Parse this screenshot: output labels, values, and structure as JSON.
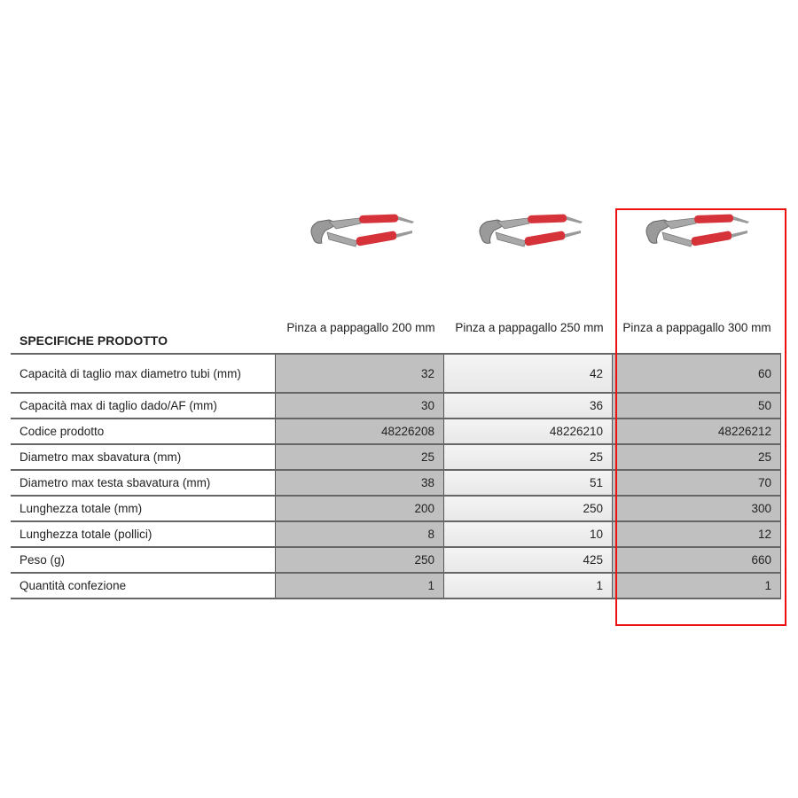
{
  "spec_title": "SPECIFICHE PRODOTTO",
  "highlight_color": "#ee1111",
  "products": [
    {
      "title": "Pinza a pappagallo 200 mm",
      "image": "pliers-image"
    },
    {
      "title": "Pinza a pappagallo 250 mm",
      "image": "pliers-image"
    },
    {
      "title": "Pinza a pappagallo 300 mm",
      "image": "pliers-image",
      "highlighted": true
    }
  ],
  "rows": [
    {
      "label": "Capacità di taglio max diametro tubi (mm)",
      "values": [
        "32",
        "42",
        "60"
      ]
    },
    {
      "label": "Capacità max di taglio dado/AF (mm)",
      "values": [
        "30",
        "36",
        "50"
      ]
    },
    {
      "label": "Codice prodotto",
      "values": [
        "48226208",
        "48226210",
        "48226212"
      ]
    },
    {
      "label": "Diametro max sbavatura (mm)",
      "values": [
        "25",
        "25",
        "25"
      ]
    },
    {
      "label": "Diametro max testa sbavatura (mm)",
      "values": [
        "38",
        "51",
        "70"
      ]
    },
    {
      "label": "Lunghezza totale (mm)",
      "values": [
        "200",
        "250",
        "300"
      ]
    },
    {
      "label": "Lunghezza totale (pollici)",
      "values": [
        "8",
        "10",
        "12"
      ]
    },
    {
      "label": "Peso (g)",
      "values": [
        "250",
        "425",
        "660"
      ]
    },
    {
      "label": "Quantità confezione",
      "values": [
        "1",
        "1",
        "1"
      ]
    }
  ]
}
